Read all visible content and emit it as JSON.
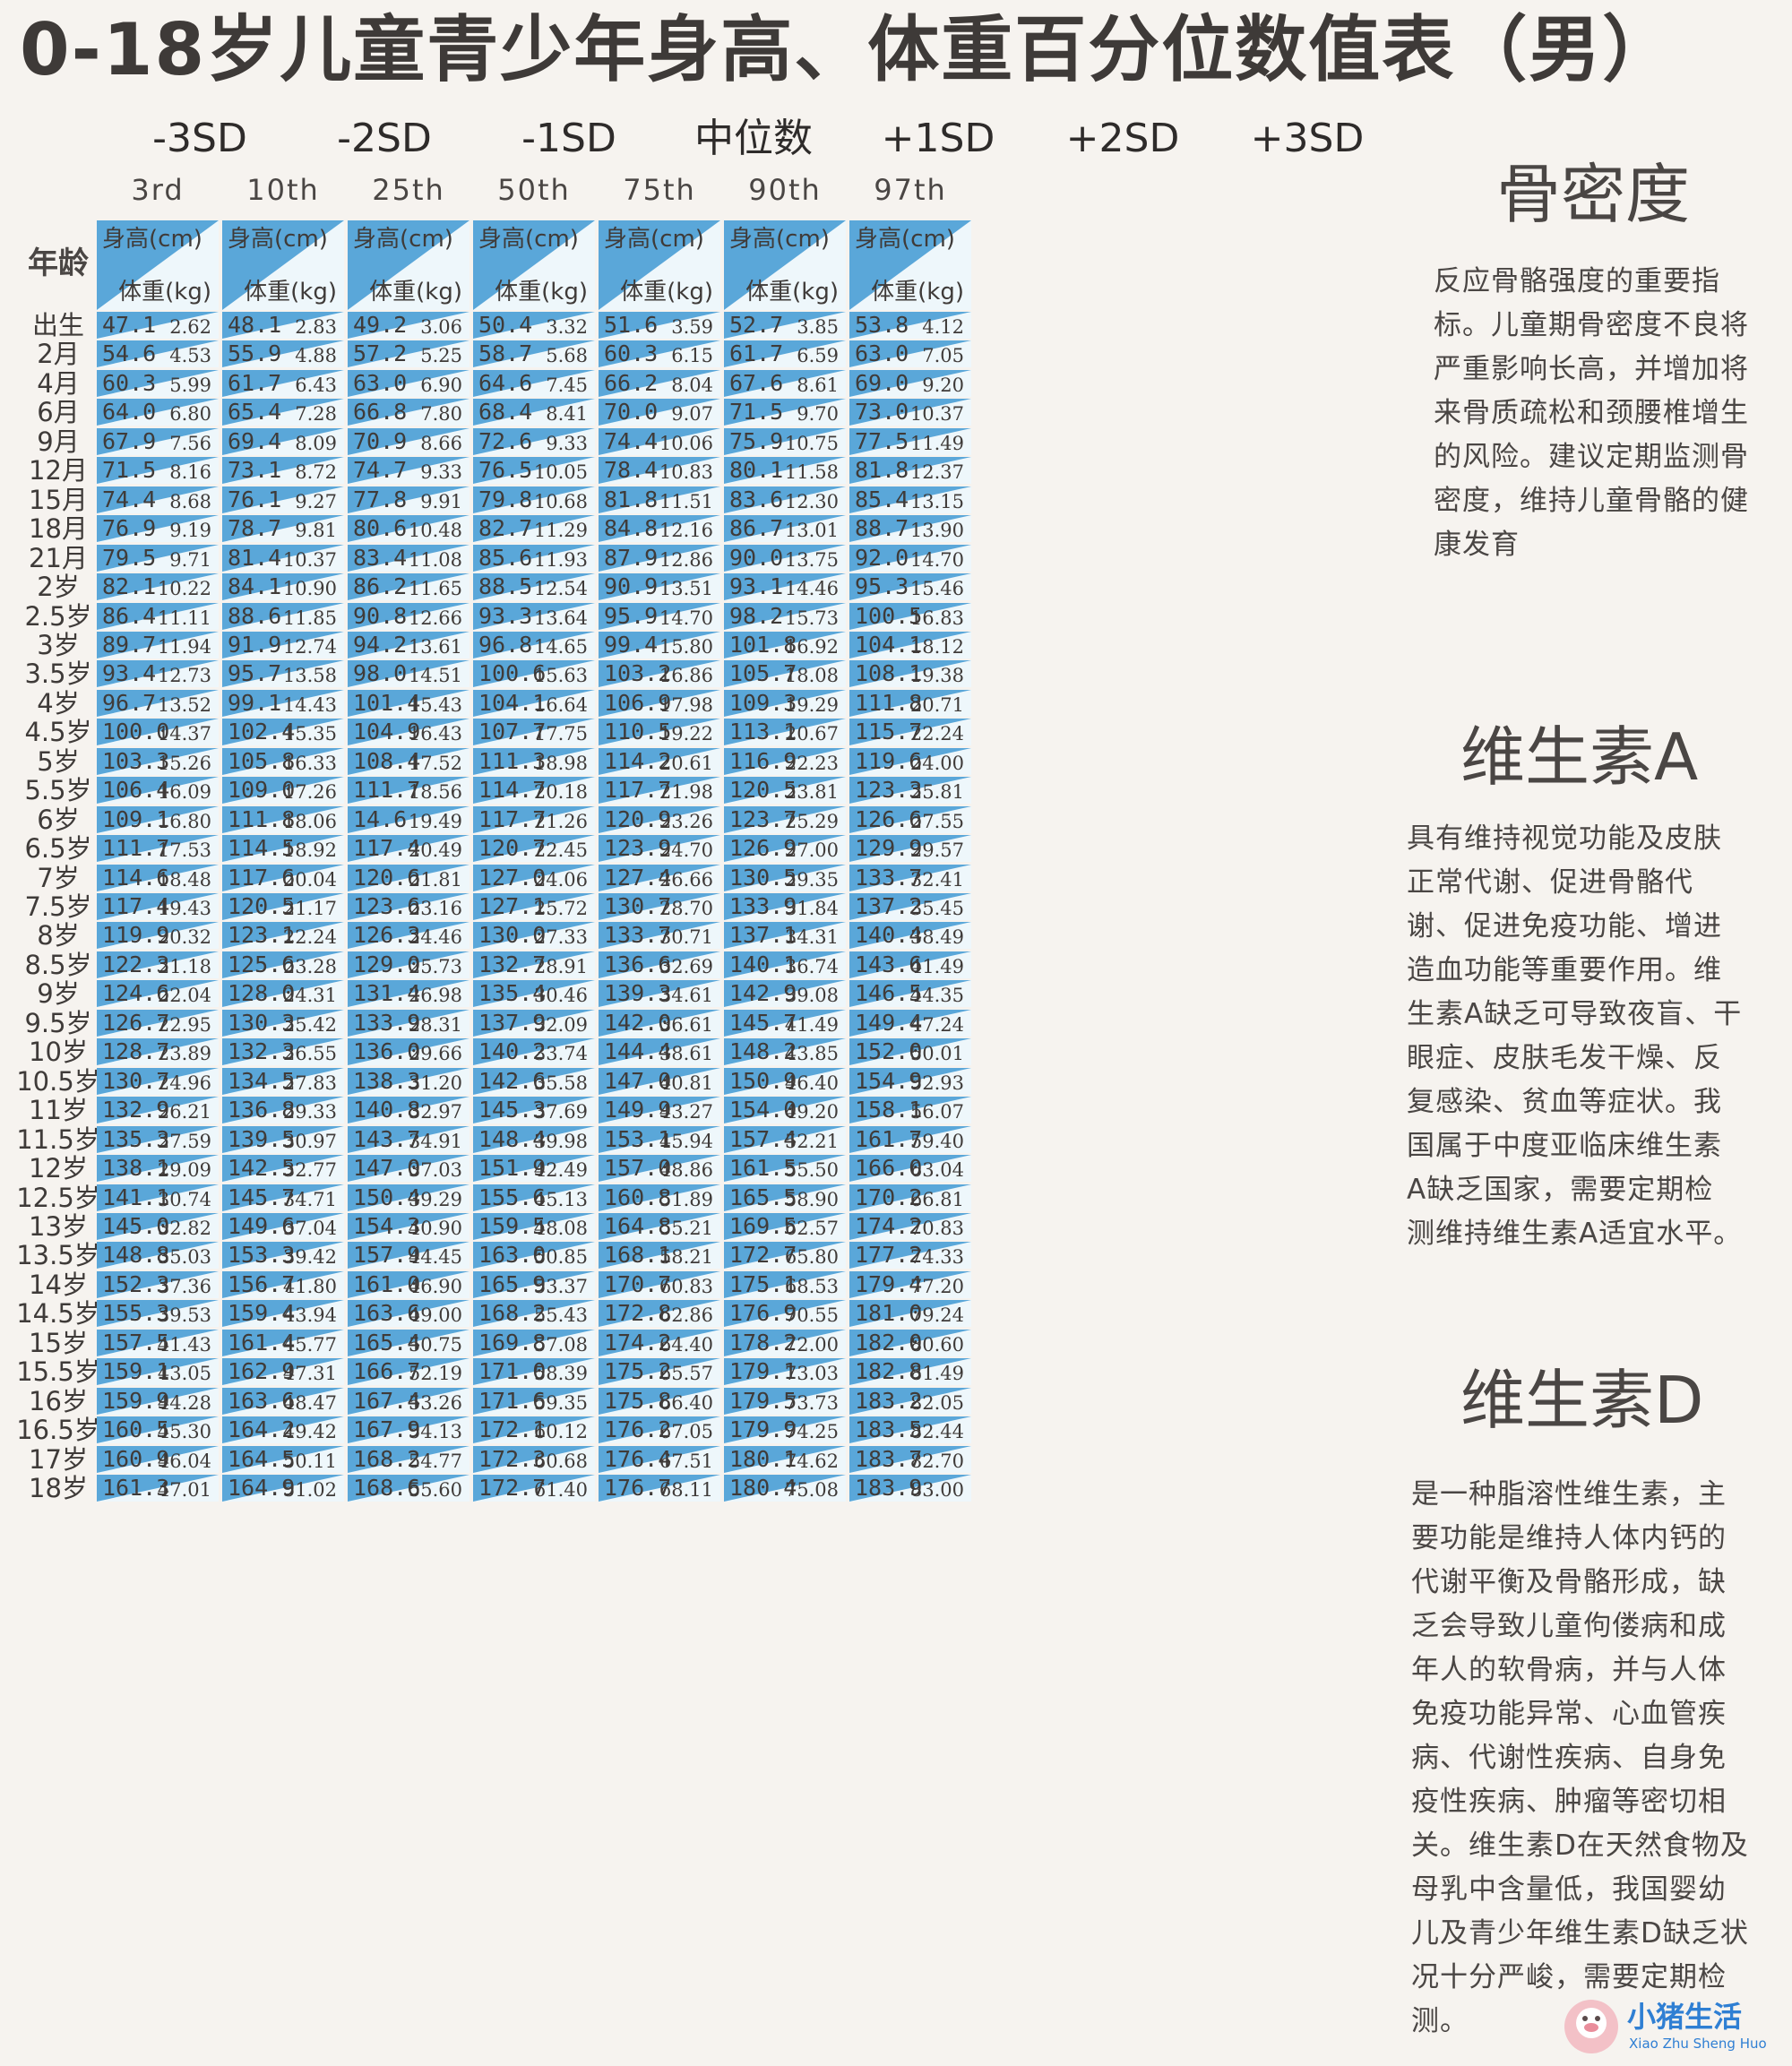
{
  "title": "0-18岁儿童青少年身高、体重百分位数值表（男）",
  "sd_labels": [
    "-3SD",
    "-2SD",
    "-1SD",
    "中位数",
    "+1SD",
    "+2SD",
    "+3SD"
  ],
  "percentiles": [
    "3rd",
    "10th",
    "25th",
    "50th",
    "75th",
    "90th",
    "97th"
  ],
  "age_header": "年龄",
  "height_label": "身高(cm)",
  "weight_label": "体重(kg)",
  "rows": [
    {
      "age": "出生",
      "h": [
        "47.1",
        "48.1",
        "49.2",
        "50.4",
        "51.6",
        "52.7",
        "53.8"
      ],
      "w": [
        "2.62",
        "2.83",
        "3.06",
        "3.32",
        "3.59",
        "3.85",
        "4.12"
      ]
    },
    {
      "age": "2月",
      "h": [
        "54.6",
        "55.9",
        "57.2",
        "58.7",
        "60.3",
        "61.7",
        "63.0"
      ],
      "w": [
        "4.53",
        "4.88",
        "5.25",
        "5.68",
        "6.15",
        "6.59",
        "7.05"
      ]
    },
    {
      "age": "4月",
      "h": [
        "60.3",
        "61.7",
        "63.0",
        "64.6",
        "66.2",
        "67.6",
        "69.0"
      ],
      "w": [
        "5.99",
        "6.43",
        "6.90",
        "7.45",
        "8.04",
        "8.61",
        "9.20"
      ]
    },
    {
      "age": "6月",
      "h": [
        "64.0",
        "65.4",
        "66.8",
        "68.4",
        "70.0",
        "71.5",
        "73.0"
      ],
      "w": [
        "6.80",
        "7.28",
        "7.80",
        "8.41",
        "9.07",
        "9.70",
        "10.37"
      ]
    },
    {
      "age": "9月",
      "h": [
        "67.9",
        "69.4",
        "70.9",
        "72.6",
        "74.4",
        "75.9",
        "77.5"
      ],
      "w": [
        "7.56",
        "8.09",
        "8.66",
        "9.33",
        "10.06",
        "10.75",
        "11.49"
      ]
    },
    {
      "age": "12月",
      "h": [
        "71.5",
        "73.1",
        "74.7",
        "76.5",
        "78.4",
        "80.1",
        "81.8"
      ],
      "w": [
        "8.16",
        "8.72",
        "9.33",
        "10.05",
        "10.83",
        "11.58",
        "12.37"
      ]
    },
    {
      "age": "15月",
      "h": [
        "74.4",
        "76.1",
        "77.8",
        "79.8",
        "81.8",
        "83.6",
        "85.4"
      ],
      "w": [
        "8.68",
        "9.27",
        "9.91",
        "10.68",
        "11.51",
        "12.30",
        "13.15"
      ]
    },
    {
      "age": "18月",
      "h": [
        "76.9",
        "78.7",
        "80.6",
        "82.7",
        "84.8",
        "86.7",
        "88.7"
      ],
      "w": [
        "9.19",
        "9.81",
        "10.48",
        "11.29",
        "12.16",
        "13.01",
        "13.90"
      ]
    },
    {
      "age": "21月",
      "h": [
        "79.5",
        "81.4",
        "83.4",
        "85.6",
        "87.9",
        "90.0",
        "92.0"
      ],
      "w": [
        "9.71",
        "10.37",
        "11.08",
        "11.93",
        "12.86",
        "13.75",
        "14.70"
      ]
    },
    {
      "age": "2岁",
      "h": [
        "82.1",
        "84.1",
        "86.2",
        "88.5",
        "90.9",
        "93.1",
        "95.3"
      ],
      "w": [
        "10.22",
        "10.90",
        "11.65",
        "12.54",
        "13.51",
        "14.46",
        "15.46"
      ]
    },
    {
      "age": "2.5岁",
      "h": [
        "86.4",
        "88.6",
        "90.8",
        "93.3",
        "95.9",
        "98.2",
        "100.5"
      ],
      "w": [
        "11.11",
        "11.85",
        "12.66",
        "13.64",
        "14.70",
        "15.73",
        "16.83"
      ]
    },
    {
      "age": "3岁",
      "h": [
        "89.7",
        "91.9",
        "94.2",
        "96.8",
        "99.4",
        "101.8",
        "104.1"
      ],
      "w": [
        "11.94",
        "12.74",
        "13.61",
        "14.65",
        "15.80",
        "16.92",
        "18.12"
      ]
    },
    {
      "age": "3.5岁",
      "h": [
        "93.4",
        "95.7",
        "98.0",
        "100.6",
        "103.2",
        "105.7",
        "108.1"
      ],
      "w": [
        "12.73",
        "13.58",
        "14.51",
        "15.63",
        "16.86",
        "18.08",
        "19.38"
      ]
    },
    {
      "age": "4岁",
      "h": [
        "96.7",
        "99.1",
        "101.4",
        "104.1",
        "106.9",
        "109.3",
        "111.8"
      ],
      "w": [
        "13.52",
        "14.43",
        "15.43",
        "16.64",
        "17.98",
        "19.29",
        "20.71"
      ]
    },
    {
      "age": "4.5岁",
      "h": [
        "100.0",
        "102.4",
        "104.9",
        "107.7",
        "110.5",
        "113.1",
        "115.7"
      ],
      "w": [
        "14.37",
        "15.35",
        "16.43",
        "17.75",
        "19.22",
        "20.67",
        "22.24"
      ]
    },
    {
      "age": "5岁",
      "h": [
        "103.3",
        "105.8",
        "108.4",
        "111.3",
        "114.2",
        "116.9",
        "119.6"
      ],
      "w": [
        "15.26",
        "16.33",
        "17.52",
        "18.98",
        "20.61",
        "22.23",
        "24.00"
      ]
    },
    {
      "age": "5.5岁",
      "h": [
        "106.4",
        "109.0",
        "111.7",
        "114.7",
        "117.7",
        "120.5",
        "123.3"
      ],
      "w": [
        "16.09",
        "17.26",
        "18.56",
        "20.18",
        "21.98",
        "23.81",
        "25.81"
      ]
    },
    {
      "age": "6岁",
      "h": [
        "109.1",
        "111.8",
        "14.6",
        "117.7",
        "120.9",
        "123.7",
        "126.6"
      ],
      "w": [
        "16.80",
        "18.06",
        "19.49",
        "21.26",
        "23.26",
        "25.29",
        "27.55"
      ]
    },
    {
      "age": "6.5岁",
      "h": [
        "111.7",
        "114.5",
        "117.4",
        "120.7",
        "123.9",
        "126.9",
        "129.9"
      ],
      "w": [
        "17.53",
        "18.92",
        "20.49",
        "22.45",
        "24.70",
        "27.00",
        "29.57"
      ]
    },
    {
      "age": "7岁",
      "h": [
        "114.6",
        "117.6",
        "120.6",
        "127.0",
        "127.4",
        "130.5",
        "133.7"
      ],
      "w": [
        "18.48",
        "20.04",
        "21.81",
        "24.06",
        "26.66",
        "29.35",
        "32.41"
      ]
    },
    {
      "age": "7.5岁",
      "h": [
        "117.4",
        "120.5",
        "123.6",
        "127.1",
        "130.7",
        "133.9",
        "137.2"
      ],
      "w": [
        "19.43",
        "21.17",
        "23.16",
        "25.72",
        "28.70",
        "31.84",
        "35.45"
      ]
    },
    {
      "age": "8岁",
      "h": [
        "119.9",
        "123.1",
        "126.3",
        "130.0",
        "133.7",
        "137.1",
        "140.4"
      ],
      "w": [
        "20.32",
        "22.24",
        "24.46",
        "27.33",
        "30.71",
        "34.31",
        "38.49"
      ]
    },
    {
      "age": "8.5岁",
      "h": [
        "122.3",
        "125.6",
        "129.0",
        "132.7",
        "136.6",
        "140.1",
        "143.6"
      ],
      "w": [
        "21.18",
        "23.28",
        "25.73",
        "28.91",
        "32.69",
        "36.74",
        "41.49"
      ]
    },
    {
      "age": "9岁",
      "h": [
        "124.6",
        "128.0",
        "131.4",
        "135.4",
        "139.3",
        "142.9",
        "146.5"
      ],
      "w": [
        "22.04",
        "24.31",
        "26.98",
        "30.46",
        "34.61",
        "39.08",
        "44.35"
      ]
    },
    {
      "age": "9.5岁",
      "h": [
        "126.7",
        "130.3",
        "133.9",
        "137.9",
        "142.0",
        "145.7",
        "149.4"
      ],
      "w": [
        "22.95",
        "25.42",
        "28.31",
        "32.09",
        "36.61",
        "41.49",
        "47.24"
      ]
    },
    {
      "age": "10岁",
      "h": [
        "128.7",
        "132.3",
        "136.0",
        "140.2",
        "144.4",
        "148.2",
        "152.0"
      ],
      "w": [
        "23.89",
        "26.55",
        "29.66",
        "33.74",
        "38.61",
        "43.85",
        "50.01"
      ]
    },
    {
      "age": "10.5岁",
      "h": [
        "130.7",
        "134.5",
        "138.3",
        "142.6",
        "147.0",
        "150.9",
        "154.9"
      ],
      "w": [
        "24.96",
        "27.83",
        "31.20",
        "35.58",
        "40.81",
        "46.40",
        "52.93"
      ]
    },
    {
      "age": "11岁",
      "h": [
        "132.9",
        "136.8",
        "140.8",
        "145.3",
        "149.9",
        "154.0",
        "158.1"
      ],
      "w": [
        "26.21",
        "29.33",
        "32.97",
        "37.69",
        "43.27",
        "49.20",
        "56.07"
      ]
    },
    {
      "age": "11.5岁",
      "h": [
        "135.3",
        "139.5",
        "143.7",
        "148.4",
        "153.1",
        "157.4",
        "161.7"
      ],
      "w": [
        "27.59",
        "30.97",
        "34.91",
        "39.98",
        "45.94",
        "52.21",
        "59.40"
      ]
    },
    {
      "age": "12岁",
      "h": [
        "138.1",
        "142.5",
        "147.0",
        "151.9",
        "157.0",
        "161.5",
        "166.0"
      ],
      "w": [
        "29.09",
        "32.77",
        "37.03",
        "42.49",
        "48.86",
        "55.50",
        "63.04"
      ]
    },
    {
      "age": "12.5岁",
      "h": [
        "141.1",
        "145.7",
        "150.4",
        "155.6",
        "160.8",
        "165.5",
        "170.2"
      ],
      "w": [
        "30.74",
        "34.71",
        "39.29",
        "45.13",
        "51.89",
        "58.90",
        "66.81"
      ]
    },
    {
      "age": "13岁",
      "h": [
        "145.0",
        "149.6",
        "154.3",
        "159.5",
        "164.8",
        "169.5",
        "174.2"
      ],
      "w": [
        "32.82",
        "37.04",
        "40.90",
        "48.08",
        "55.21",
        "62.57",
        "70.83"
      ]
    },
    {
      "age": "13.5岁",
      "h": [
        "148.8",
        "153.3",
        "157.9",
        "163.0",
        "168.1",
        "172.7",
        "177.2"
      ],
      "w": [
        "35.03",
        "39.42",
        "44.45",
        "50.85",
        "58.21",
        "65.80",
        "74.33"
      ]
    },
    {
      "age": "14岁",
      "h": [
        "152.3",
        "156.7",
        "161.0",
        "165.9",
        "170.7",
        "175.1",
        "179.4"
      ],
      "w": [
        "37.36",
        "41.80",
        "46.90",
        "53.37",
        "60.83",
        "68.53",
        "77.20"
      ]
    },
    {
      "age": "14.5岁",
      "h": [
        "155.3",
        "159.4",
        "163.6",
        "168.2",
        "172.8",
        "176.9",
        "181.0"
      ],
      "w": [
        "39.53",
        "43.94",
        "49.00",
        "55.43",
        "62.86",
        "70.55",
        "79.24"
      ]
    },
    {
      "age": "15岁",
      "h": [
        "157.5",
        "161.4",
        "165.4",
        "169.8",
        "174.2",
        "178.2",
        "182.0"
      ],
      "w": [
        "41.43",
        "45.77",
        "50.75",
        "57.08",
        "64.40",
        "72.00",
        "80.60"
      ]
    },
    {
      "age": "15.5岁",
      "h": [
        "159.1",
        "162.9",
        "166.7",
        "171.0",
        "175.2",
        "179.1",
        "182.8"
      ],
      "w": [
        "43.05",
        "47.31",
        "52.19",
        "58.39",
        "65.57",
        "73.03",
        "81.49"
      ]
    },
    {
      "age": "16岁",
      "h": [
        "159.9",
        "163.6",
        "167.4",
        "171.6",
        "175.8",
        "179.5",
        "183.2"
      ],
      "w": [
        "44.28",
        "48.47",
        "53.26",
        "59.35",
        "66.40",
        "73.73",
        "82.05"
      ]
    },
    {
      "age": "16.5岁",
      "h": [
        "160.5",
        "164.2",
        "167.9",
        "172.1",
        "176.2",
        "179.9",
        "183.5"
      ],
      "w": [
        "45.30",
        "49.42",
        "54.13",
        "60.12",
        "67.05",
        "74.25",
        "82.44"
      ]
    },
    {
      "age": "17岁",
      "h": [
        "160.9",
        "164.5",
        "168.2",
        "172.3",
        "176.4",
        "180.1",
        "183.7"
      ],
      "w": [
        "46.04",
        "50.11",
        "54.77",
        "60.68",
        "67.51",
        "74.62",
        "82.70"
      ]
    },
    {
      "age": "18岁",
      "h": [
        "161.3",
        "164.9",
        "168.6",
        "172.7",
        "176.7",
        "180.4",
        "183.9"
      ],
      "w": [
        "47.01",
        "51.02",
        "55.60",
        "61.40",
        "68.11",
        "75.08",
        "83.00"
      ]
    }
  ],
  "side": {
    "bone_title": "骨密度",
    "bone_text": "反应骨骼强度的重要指\n标。儿童期骨密度不良将\n严重影响长高，并增加将\n来骨质疏松和颈腰椎增生\n的风险。建议定期监测骨\n密度，维持儿童骨骼的健\n康发育",
    "vita_title": "维生素A",
    "vita_text": "具有维持视觉功能及皮肤\n正常代谢、促进骨骼代\n谢、促进免疫功能、增进\n造血功能等重要作用。维\n生素A缺乏可导致夜盲、干\n眼症、皮肤毛发干燥、反\n复感染、贫血等症状。我\n国属于中度亚临床维生素\nA缺乏国家，需要定期检\n测维持维生素A适宜水平。",
    "vitd_title": "维生素D",
    "vitd_text": "是一种脂溶性维生素，主\n要功能是维持人体内钙的\n代谢平衡及骨骼形成，缺\n乏会导致儿童佝偻病和成\n年人的软骨病，并与人体\n免疫功能异常、心血管疾\n病、代谢性疾病、自身免\n疫性疾病、肿瘤等密切相\n关。维生素D在天然食物及\n母乳中含量低，我国婴幼\n儿及青少年维生素D缺乏状\n况十分严峻，需要定期检\n测。"
  },
  "logo": {
    "main": "小猪生活",
    "sub": "Xiao Zhu Sheng Huo"
  },
  "colors": {
    "cell_blue": "#5aa7d9",
    "cell_light": "#eef7fb",
    "text_dark": "#3f3b39",
    "background": "#f6f3ef"
  }
}
